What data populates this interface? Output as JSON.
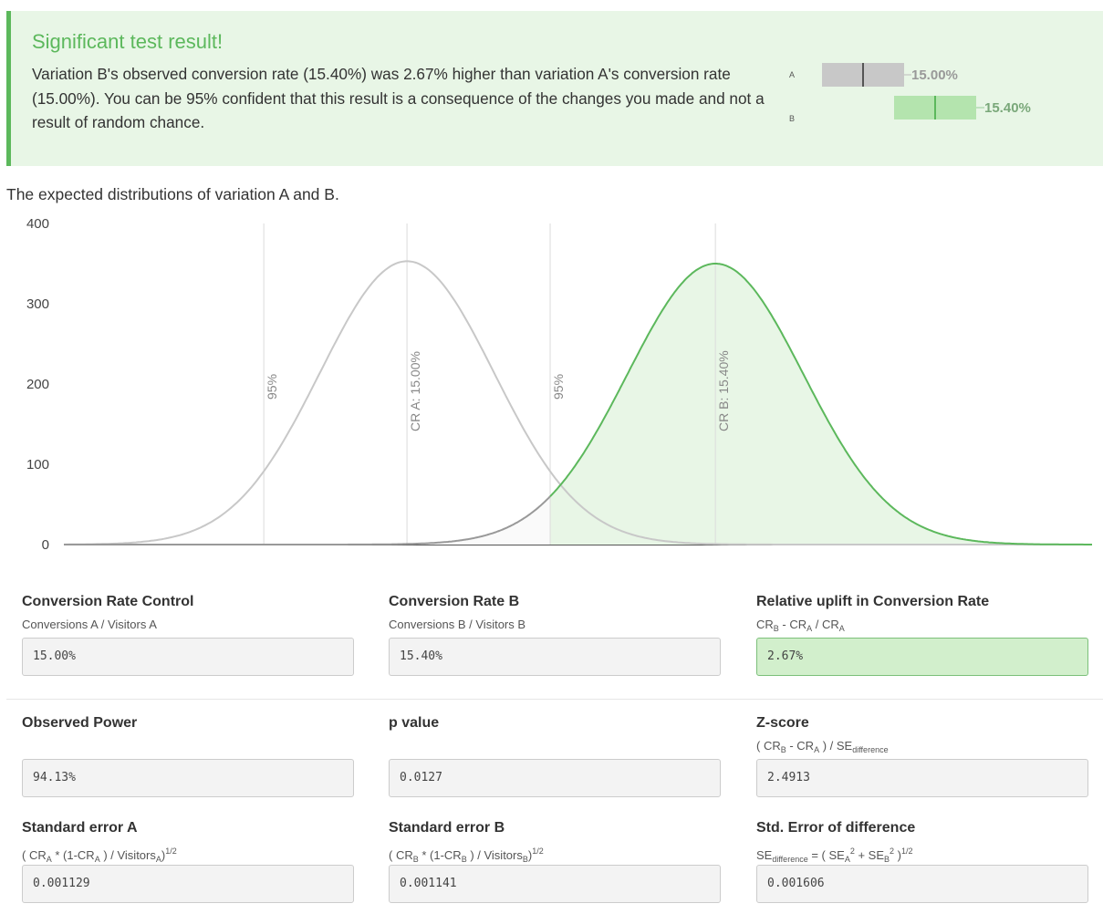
{
  "result": {
    "title": "Significant test result!",
    "text": "Variation B's observed conversion rate (15.40%) was 2.67% higher than variation A's conversion rate (15.00%). You can be 95% confident that this result is a consequence of the changes you made and not a result of random chance.",
    "bars": [
      {
        "label": "A",
        "value": "15.00%",
        "color": "#c8c8c8",
        "marker": "#555555",
        "text_color": "#999999"
      },
      {
        "label": "B",
        "value": "15.40%",
        "color": "#b4e4ae",
        "marker": "#5cb85c",
        "text_color": "#7aa87a"
      }
    ]
  },
  "chart_title": "The expected distributions of variation A and B.",
  "chart_data": {
    "type": "area",
    "y_ticks": [
      "0",
      "100",
      "200",
      "300",
      "400"
    ],
    "ylim": [
      0,
      400
    ],
    "grid": false,
    "series": [
      {
        "name": "A",
        "mean": 0.15,
        "se": 0.001129,
        "peak": 353,
        "color": "#c8c8c8"
      },
      {
        "name": "B",
        "mean": 0.154,
        "se": 0.001141,
        "peak": 350,
        "color": "#5cb85c",
        "fill": "#e8f6e6"
      }
    ],
    "annotations": [
      {
        "text": "95%",
        "at": 0.148143
      },
      {
        "text": "CR A: 15.00%",
        "at": 0.15
      },
      {
        "text": "95%",
        "at": 0.151857
      },
      {
        "text": "CR B: 15.40%",
        "at": 0.154
      }
    ]
  },
  "metrics": [
    {
      "label": "Conversion Rate Control",
      "formula": "Conversions A / Visitors A",
      "value": "15.00%"
    },
    {
      "label": "Conversion Rate B",
      "formula": "Conversions B / Visitors B",
      "value": "15.40%"
    },
    {
      "label": "Relative uplift in Conversion Rate",
      "formula": "CR_B - CR_A / CR_A",
      "value": "2.67%",
      "highlight": true
    },
    {
      "label": "Observed Power",
      "formula": "",
      "value": "94.13%"
    },
    {
      "label": "p value",
      "formula": "",
      "value": "0.0127"
    },
    {
      "label": "Z-score",
      "formula": "( CR_B - CR_A ) / SE_difference",
      "value": "2.4913"
    },
    {
      "label": "Standard error A",
      "formula": "( CR_A * (1-CR_A ) / Visitors_A)^1/2",
      "value": "0.001129"
    },
    {
      "label": "Standard error B",
      "formula": "( CR_B * (1-CR_B ) / Visitors_B)^1/2",
      "value": "0.001141"
    },
    {
      "label": "Std. Error of difference",
      "formula": "SE_difference = ( SE_A^2 + SE_B^2 )^1/2",
      "value": "0.001606"
    }
  ]
}
